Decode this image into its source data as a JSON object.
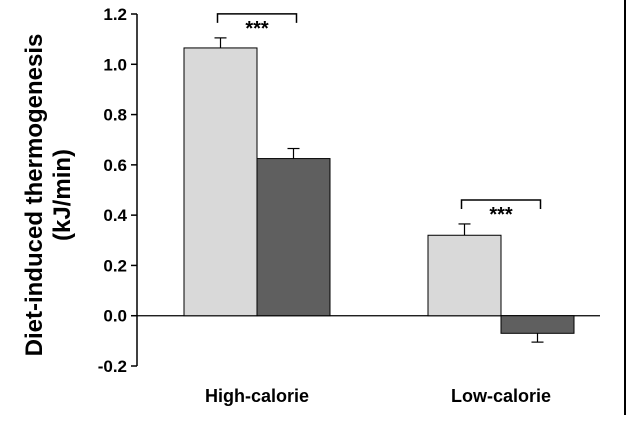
{
  "chart_data": {
    "type": "bar",
    "title": "",
    "xlabel": "",
    "ylabel_line1": "Diet-induced thermogenesis",
    "ylabel_line2": "(kJ/min)",
    "ylim": [
      -0.2,
      1.2
    ],
    "yticks": [
      1.2,
      1.0,
      0.8,
      0.6,
      0.4,
      0.2,
      0.0,
      -0.2
    ],
    "ytick_labels": [
      "1.2",
      "1.0",
      "0.8",
      "0.6",
      "0.4",
      "0.2",
      "0.0",
      "-0.2"
    ],
    "categories": [
      "High-calorie",
      "Low-calorie"
    ],
    "series": [
      {
        "values": [
          1.065,
          0.32
        ],
        "errors": [
          0.04,
          0.045
        ],
        "color": "#d9d9d9"
      },
      {
        "values": [
          0.625,
          -0.07
        ],
        "errors": [
          0.04,
          0.035
        ],
        "color": "#5f5f5f"
      }
    ],
    "significance": [
      {
        "category_index": 0,
        "label": "***"
      },
      {
        "category_index": 1,
        "label": "***"
      }
    ],
    "grid": false,
    "legend": "none",
    "colors": {
      "light_bar": "#d9d9d9",
      "dark_bar": "#5f5f5f",
      "axis": "#000000"
    }
  }
}
